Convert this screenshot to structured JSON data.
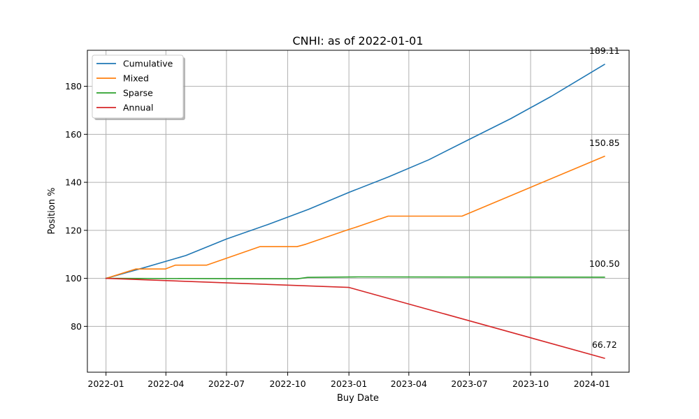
{
  "chart_data": {
    "type": "line",
    "title": "CNHI: as of 2022-01-01",
    "xlabel": "Buy Date",
    "ylabel": "Position %",
    "xlim": [
      "2021-12-04",
      "2024-02-26"
    ],
    "ylim": [
      60.9,
      195.0
    ],
    "x_ticks": [
      {
        "date": "2022-01-01",
        "label": "2022-01"
      },
      {
        "date": "2022-04-01",
        "label": "2022-04"
      },
      {
        "date": "2022-07-01",
        "label": "2022-07"
      },
      {
        "date": "2022-10-01",
        "label": "2022-10"
      },
      {
        "date": "2023-01-01",
        "label": "2023-01"
      },
      {
        "date": "2023-04-01",
        "label": "2023-04"
      },
      {
        "date": "2023-07-01",
        "label": "2023-07"
      },
      {
        "date": "2023-10-01",
        "label": "2023-10"
      },
      {
        "date": "2024-01-01",
        "label": "2024-01"
      }
    ],
    "y_ticks": [
      80,
      100,
      120,
      140,
      160,
      180
    ],
    "grid": true,
    "legend_position": "top-left",
    "series": [
      {
        "name": "Cumulative",
        "color": "#1f77b4",
        "end_label": "189.11",
        "points": [
          [
            "2022-01-01",
            100.0
          ],
          [
            "2022-03-01",
            104.6
          ],
          [
            "2022-05-01",
            109.5
          ],
          [
            "2022-07-01",
            116.4
          ],
          [
            "2022-09-01",
            122.4
          ],
          [
            "2022-11-01",
            128.7
          ],
          [
            "2023-01-01",
            135.8
          ],
          [
            "2023-03-01",
            142.2
          ],
          [
            "2023-05-01",
            149.4
          ],
          [
            "2023-07-01",
            157.9
          ],
          [
            "2023-09-01",
            166.5
          ],
          [
            "2023-11-01",
            175.8
          ],
          [
            "2024-01-20",
            189.11
          ]
        ]
      },
      {
        "name": "Mixed",
        "color": "#ff7f0e",
        "end_label": "150.85",
        "points": [
          [
            "2022-01-01",
            100.0
          ],
          [
            "2022-02-15",
            103.9
          ],
          [
            "2022-03-31",
            103.9
          ],
          [
            "2022-04-15",
            105.5
          ],
          [
            "2022-06-01",
            105.5
          ],
          [
            "2022-08-20",
            113.2
          ],
          [
            "2022-10-15",
            113.2
          ],
          [
            "2022-10-28",
            114.2
          ],
          [
            "2023-01-01",
            120.4
          ],
          [
            "2023-01-15",
            121.6
          ],
          [
            "2023-03-01",
            125.9
          ],
          [
            "2023-06-20",
            125.9
          ],
          [
            "2024-01-20",
            150.85
          ]
        ]
      },
      {
        "name": "Sparse",
        "color": "#2ca02c",
        "end_label": "100.50",
        "points": [
          [
            "2022-01-01",
            100.0
          ],
          [
            "2022-10-15",
            99.8
          ],
          [
            "2022-10-31",
            100.4
          ],
          [
            "2023-01-15",
            100.6
          ],
          [
            "2024-01-20",
            100.5
          ]
        ]
      },
      {
        "name": "Annual",
        "color": "#d62728",
        "end_label": "66.72",
        "points": [
          [
            "2022-01-01",
            100.0
          ],
          [
            "2023-01-01",
            96.2
          ],
          [
            "2024-01-20",
            66.72
          ]
        ]
      }
    ]
  }
}
